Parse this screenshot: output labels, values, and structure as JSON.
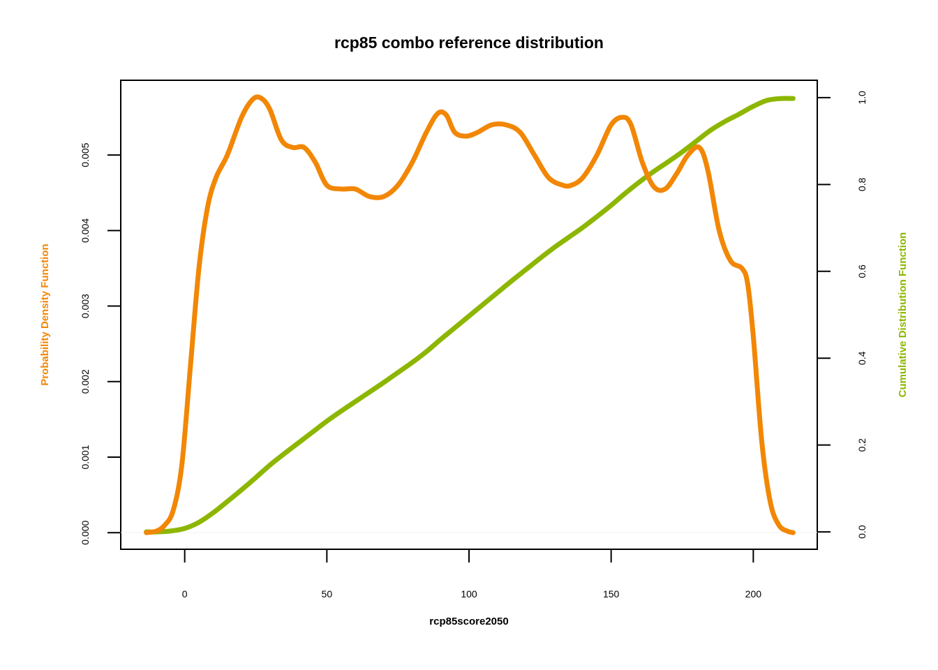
{
  "chart_data": {
    "type": "line",
    "title": "rcp85 combo reference distribution",
    "xlabel": "rcp85score2050",
    "ylabel_left": "Probability Density Function",
    "ylabel_right": "Cumulative Distribution Function",
    "xlim": [
      -22.5,
      222.5
    ],
    "ylim_left": [
      -0.00022,
      0.00599
    ],
    "ylim_right": [
      -0.04,
      1.04
    ],
    "x_ticks": [
      "0",
      "50",
      "100",
      "150",
      "200"
    ],
    "y_left_ticks": [
      "0.000",
      "0.001",
      "0.002",
      "0.003",
      "0.004",
      "0.005"
    ],
    "y_right_ticks": [
      "0.0",
      "0.2",
      "0.4",
      "0.6",
      "0.8",
      "1.0"
    ],
    "grid": false,
    "colors": {
      "pdf": "#F28705",
      "cdf": "#8DB600"
    },
    "series": [
      {
        "axis": "left",
        "x": [
          -13.5,
          -10,
          -7,
          -4,
          -1,
          2,
          5,
          8,
          11,
          15,
          20,
          24,
          27,
          30,
          34,
          38,
          42,
          46,
          50,
          55,
          60,
          65,
          70,
          75,
          80,
          85,
          89,
          92,
          95,
          99,
          103,
          108,
          113,
          118,
          123,
          128,
          133,
          136,
          140,
          145,
          150,
          154,
          157,
          161,
          165,
          169,
          173,
          177,
          181,
          184,
          188,
          192,
          196,
          198,
          200,
          203,
          206,
          209,
          212,
          214
        ],
        "y": [
          0.0,
          2e-05,
          0.0001,
          0.0003,
          0.0009,
          0.0022,
          0.0035,
          0.0043,
          0.0047,
          0.005,
          0.0055,
          0.00574,
          0.00575,
          0.0056,
          0.0052,
          0.0051,
          0.0051,
          0.0049,
          0.0046,
          0.00455,
          0.00455,
          0.00445,
          0.00445,
          0.0046,
          0.0049,
          0.0053,
          0.00555,
          0.00553,
          0.0053,
          0.00525,
          0.0053,
          0.0054,
          0.0054,
          0.0053,
          0.005,
          0.0047,
          0.0046,
          0.0046,
          0.0047,
          0.005,
          0.0054,
          0.0055,
          0.0054,
          0.0049,
          0.00458,
          0.00455,
          0.00475,
          0.005,
          0.0051,
          0.0048,
          0.004,
          0.0036,
          0.0035,
          0.0033,
          0.0026,
          0.0012,
          0.0004,
          0.0001,
          2e-05,
          0.0
        ]
      },
      {
        "axis": "right",
        "x": [
          -13.5,
          -10,
          -5,
          0,
          5,
          10,
          15,
          20,
          25,
          30,
          35,
          40,
          45,
          50,
          55,
          60,
          65,
          70,
          75,
          80,
          85,
          90,
          95,
          100,
          105,
          110,
          115,
          120,
          125,
          130,
          135,
          140,
          145,
          150,
          155,
          160,
          165,
          170,
          175,
          180,
          185,
          190,
          195,
          200,
          205,
          210,
          214
        ],
        "y": [
          0.0,
          0.0,
          0.002,
          0.008,
          0.022,
          0.044,
          0.07,
          0.097,
          0.125,
          0.154,
          0.18,
          0.205,
          0.23,
          0.255,
          0.278,
          0.3,
          0.322,
          0.344,
          0.367,
          0.39,
          0.415,
          0.443,
          0.47,
          0.497,
          0.524,
          0.551,
          0.578,
          0.604,
          0.63,
          0.655,
          0.678,
          0.701,
          0.726,
          0.752,
          0.78,
          0.806,
          0.83,
          0.852,
          0.875,
          0.9,
          0.925,
          0.945,
          0.962,
          0.98,
          0.994,
          0.998,
          0.998
        ]
      }
    ]
  }
}
